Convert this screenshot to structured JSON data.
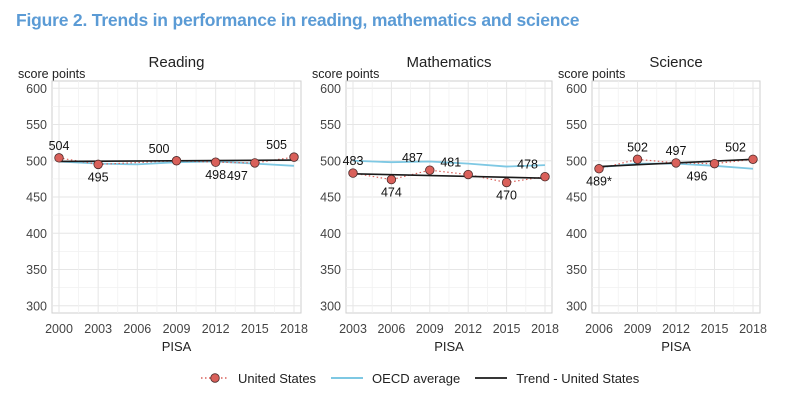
{
  "figure_title": "Figure 2. Trends in performance in reading, mathematics and science",
  "colors": {
    "us_point_fill": "#d9605a",
    "us_point_stroke": "#4a2a2a",
    "oecd_line": "#7ec8e3",
    "trend_line": "#1a1a1a",
    "grid": "#e6e6e6",
    "title": "#5b9bd5"
  },
  "legend": {
    "items": [
      {
        "label": "United States",
        "style": "points-dotted"
      },
      {
        "label": "OECD average",
        "style": "line-light-blue"
      },
      {
        "label": "Trend - United States",
        "style": "line-black"
      }
    ]
  },
  "chart_data": [
    {
      "type": "line",
      "title": "Reading",
      "ylabel": "score points",
      "xlabel": "PISA",
      "ylim": [
        290,
        610
      ],
      "yticks": [
        300,
        350,
        400,
        450,
        500,
        550,
        600
      ],
      "x": [
        2000,
        2003,
        2006,
        2009,
        2012,
        2015,
        2018
      ],
      "series": [
        {
          "name": "United States",
          "points": [
            {
              "x": 2000,
              "y": 504,
              "label": "504",
              "label_pos": "above"
            },
            {
              "x": 2003,
              "y": 495,
              "label": "495",
              "label_pos": "below"
            },
            {
              "x": 2009,
              "y": 500,
              "label": "500",
              "label_pos": "above-left"
            },
            {
              "x": 2012,
              "y": 498,
              "label": "498",
              "label_pos": "below"
            },
            {
              "x": 2015,
              "y": 497,
              "label": "497",
              "label_pos": "below-left"
            },
            {
              "x": 2018,
              "y": 505,
              "label": "505",
              "label_pos": "above-left"
            }
          ]
        },
        {
          "name": "OECD average",
          "points": [
            {
              "x": 2000,
              "y": 499
            },
            {
              "x": 2003,
              "y": 496
            },
            {
              "x": 2006,
              "y": 495
            },
            {
              "x": 2009,
              "y": 498
            },
            {
              "x": 2012,
              "y": 499
            },
            {
              "x": 2015,
              "y": 496
            },
            {
              "x": 2018,
              "y": 493
            }
          ]
        },
        {
          "name": "Trend - United States",
          "points": [
            {
              "x": 2000,
              "y": 499
            },
            {
              "x": 2018,
              "y": 501
            }
          ]
        }
      ]
    },
    {
      "type": "line",
      "title": "Mathematics",
      "ylabel": "score points",
      "xlabel": "PISA",
      "ylim": [
        290,
        610
      ],
      "yticks": [
        300,
        350,
        400,
        450,
        500,
        550,
        600
      ],
      "x": [
        2003,
        2006,
        2009,
        2012,
        2015,
        2018
      ],
      "series": [
        {
          "name": "United States",
          "points": [
            {
              "x": 2003,
              "y": 483,
              "label": "483",
              "label_pos": "above"
            },
            {
              "x": 2006,
              "y": 474,
              "label": "474",
              "label_pos": "below"
            },
            {
              "x": 2009,
              "y": 487,
              "label": "487",
              "label_pos": "above-left"
            },
            {
              "x": 2012,
              "y": 481,
              "label": "481",
              "label_pos": "above-left"
            },
            {
              "x": 2015,
              "y": 470,
              "label": "470",
              "label_pos": "below"
            },
            {
              "x": 2018,
              "y": 478,
              "label": "478",
              "label_pos": "above-left"
            }
          ]
        },
        {
          "name": "OECD average",
          "points": [
            {
              "x": 2003,
              "y": 500
            },
            {
              "x": 2006,
              "y": 498
            },
            {
              "x": 2009,
              "y": 499
            },
            {
              "x": 2012,
              "y": 496
            },
            {
              "x": 2015,
              "y": 492
            },
            {
              "x": 2018,
              "y": 494
            }
          ]
        },
        {
          "name": "Trend - United States",
          "points": [
            {
              "x": 2003,
              "y": 482
            },
            {
              "x": 2018,
              "y": 476
            }
          ]
        }
      ]
    },
    {
      "type": "line",
      "title": "Science",
      "ylabel": "score points",
      "xlabel": "PISA",
      "ylim": [
        290,
        610
      ],
      "yticks": [
        300,
        350,
        400,
        450,
        500,
        550,
        600
      ],
      "x": [
        2006,
        2009,
        2012,
        2015,
        2018
      ],
      "series": [
        {
          "name": "United States",
          "points": [
            {
              "x": 2006,
              "y": 489,
              "label": "489*",
              "label_pos": "below"
            },
            {
              "x": 2009,
              "y": 502,
              "label": "502",
              "label_pos": "above"
            },
            {
              "x": 2012,
              "y": 497,
              "label": "497",
              "label_pos": "above"
            },
            {
              "x": 2015,
              "y": 496,
              "label": "496",
              "label_pos": "below-left"
            },
            {
              "x": 2018,
              "y": 502,
              "label": "502",
              "label_pos": "above-left"
            }
          ]
        },
        {
          "name": "OECD average",
          "points": [
            {
              "x": 2006,
              "y": 491
            },
            {
              "x": 2009,
              "y": 496
            },
            {
              "x": 2012,
              "y": 496
            },
            {
              "x": 2015,
              "y": 493
            },
            {
              "x": 2018,
              "y": 489
            }
          ]
        },
        {
          "name": "Trend - United States",
          "points": [
            {
              "x": 2006,
              "y": 492
            },
            {
              "x": 2018,
              "y": 502
            }
          ]
        }
      ]
    }
  ]
}
